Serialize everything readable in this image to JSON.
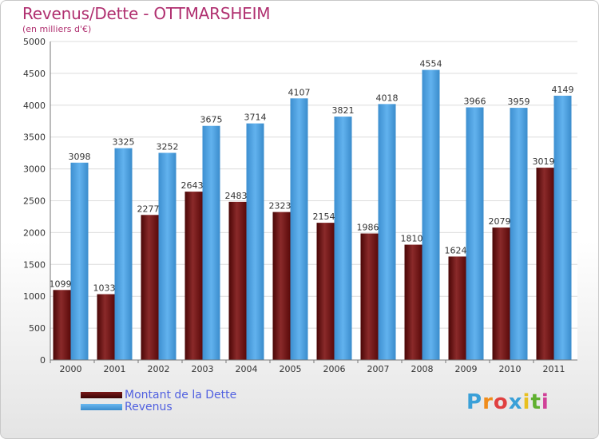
{
  "chart_data": {
    "type": "bar",
    "title": "Revenus/Dette - OTTMARSHEIM",
    "subtitle": "(en milliers d'€)",
    "categories": [
      "2000",
      "2001",
      "2002",
      "2003",
      "2004",
      "2005",
      "2006",
      "2007",
      "2008",
      "2009",
      "2010",
      "2011"
    ],
    "series": [
      {
        "name": "Montant de la Dette",
        "values": [
          1099,
          1033,
          2277,
          2643,
          2483,
          2323,
          2154,
          1986,
          1810,
          1624,
          2079,
          3019
        ],
        "color": "#6b1010"
      },
      {
        "name": "Revenus",
        "values": [
          3098,
          3325,
          3252,
          3675,
          3714,
          4107,
          3821,
          4018,
          4554,
          3966,
          3959,
          4149
        ],
        "color": "#4fa6e6"
      }
    ],
    "ylim": [
      0,
      5000
    ],
    "yticks": [
      0,
      500,
      1000,
      1500,
      2000,
      2500,
      3000,
      3500,
      4000,
      4500,
      5000
    ],
    "grid": true,
    "legend_position": "bottom-left"
  },
  "logo": {
    "letters": [
      "P",
      "r",
      "o",
      "x",
      "i",
      "t",
      "i"
    ],
    "colors": [
      "#3aa0d8",
      "#f08c1a",
      "#e04040",
      "#3aa0d8",
      "#e8c020",
      "#60b030",
      "#d04098"
    ]
  }
}
